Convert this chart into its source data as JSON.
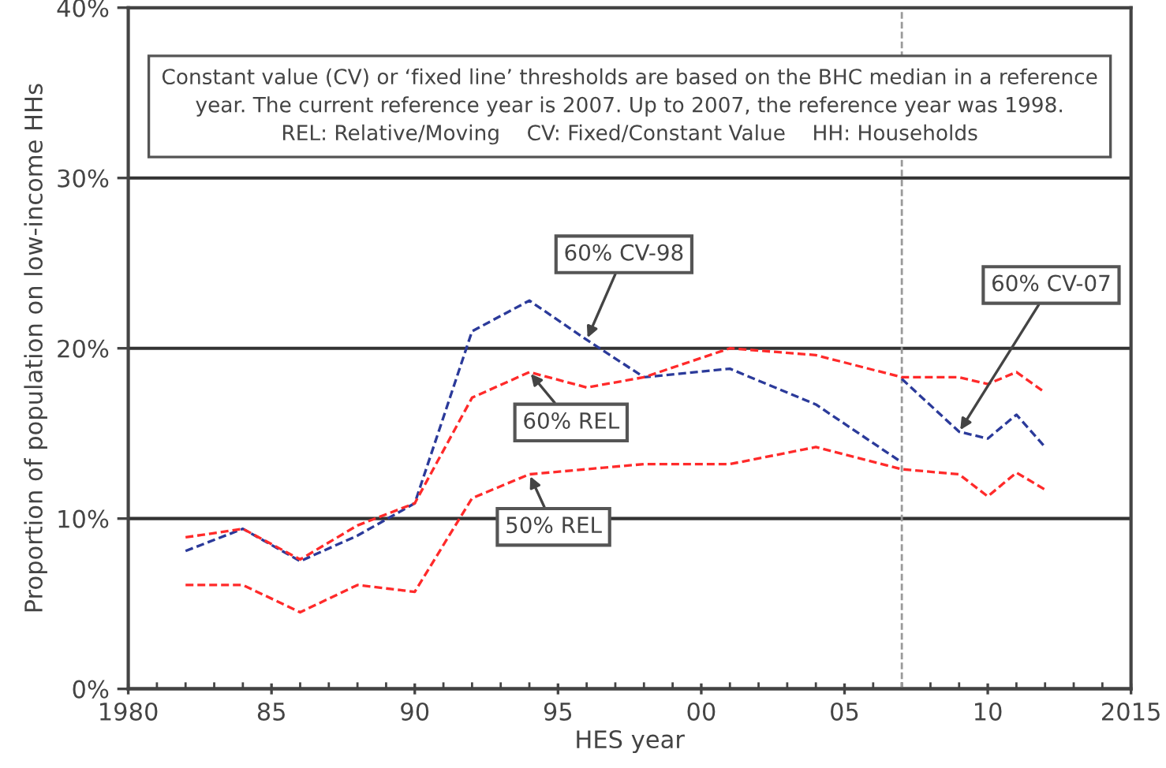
{
  "chart_data": {
    "type": "line",
    "xlabel": "HES year",
    "ylabel": "Proportion of population on low-income HHs",
    "xlim": [
      1980,
      2015
    ],
    "xticks": [
      {
        "value": 1980,
        "label": "1980"
      },
      {
        "value": 1985,
        "label": "85"
      },
      {
        "value": 1990,
        "label": "90"
      },
      {
        "value": 1995,
        "label": "95"
      },
      {
        "value": 2000,
        "label": "00"
      },
      {
        "value": 2005,
        "label": "05"
      },
      {
        "value": 2010,
        "label": "10"
      },
      {
        "value": 2015,
        "label": "2015"
      }
    ],
    "ylim": [
      0,
      40
    ],
    "yticks": [
      {
        "value": 0,
        "label": "0%"
      },
      {
        "value": 10,
        "label": "10%"
      },
      {
        "value": 20,
        "label": "20%"
      },
      {
        "value": 30,
        "label": "30%"
      },
      {
        "value": 40,
        "label": "40%"
      }
    ],
    "grid": "y",
    "line_style": "dashed",
    "marker": "none",
    "legend": false,
    "series": [
      {
        "color": "#2b3a9a",
        "x": [
          1982,
          1984,
          1986,
          1988,
          1990,
          1992,
          1994,
          1996,
          1998,
          2001,
          2004,
          2007
        ],
        "values": [
          8.1,
          9.4,
          7.5,
          9.0,
          10.9,
          21.0,
          22.8,
          20.5,
          18.3,
          18.8,
          16.7,
          13.3
        ]
      },
      {
        "color": "#2b3a9a",
        "x": [
          2007,
          2009,
          2010,
          2011,
          2012
        ],
        "values": [
          18.2,
          15.1,
          14.7,
          16.1,
          14.2
        ]
      },
      {
        "color": "#ff2a2a",
        "x": [
          1982,
          1984,
          1986,
          1988,
          1990,
          1992,
          1994,
          1996,
          1998,
          2001,
          2004,
          2007,
          2009,
          2010,
          2011,
          2012
        ],
        "values": [
          8.9,
          9.4,
          7.6,
          9.6,
          10.9,
          17.1,
          18.6,
          17.7,
          18.3,
          20.0,
          19.6,
          18.3,
          18.3,
          17.9,
          18.6,
          17.4
        ]
      },
      {
        "color": "#ff2a2a",
        "x": [
          1982,
          1984,
          1986,
          1988,
          1990,
          1992,
          1994,
          1996,
          1998,
          2001,
          2004,
          2007,
          2009,
          2010,
          2011,
          2012
        ],
        "values": [
          6.1,
          6.1,
          4.5,
          6.1,
          5.7,
          11.2,
          12.6,
          12.9,
          13.2,
          13.2,
          14.2,
          12.9,
          12.6,
          11.3,
          12.7,
          11.7
        ]
      }
    ],
    "ref_lines": [
      {
        "axis": "x",
        "value": 2007,
        "label": null,
        "color": "#999999",
        "line_style": "dashed"
      }
    ],
    "annotations": [
      "Constant value (CV) or ‘fixed line’ thresholds are based on the BHC median in a reference\nyear. The current reference year is 2007. Up to 2007, the reference year was 1998.\nREL: Relative/Moving    CV: Fixed/Constant Value    HH: Households",
      {
        "text": "60% CV-98",
        "x": 1996,
        "y": 20.5
      },
      {
        "text": "60% REL",
        "x": 1994,
        "y": 18.6
      },
      {
        "text": "50% REL",
        "x": 1994,
        "y": 12.6
      },
      {
        "text": "60% CV-07",
        "x": 2009,
        "y": 15.1
      }
    ]
  }
}
